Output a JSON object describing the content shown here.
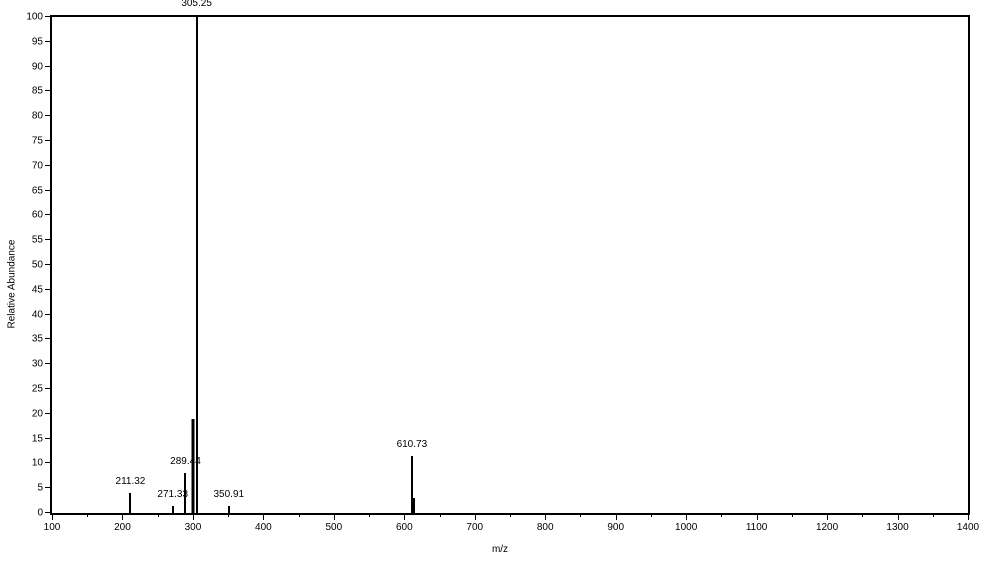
{
  "chart": {
    "type": "mass_spectrum",
    "background_color": "#ffffff",
    "border_color": "#000000",
    "text_color": "#000000",
    "peak_color": "#000000",
    "font_size_labels": 10,
    "font_size_axis": 10,
    "x_axis": {
      "title": "m/z",
      "min": 100,
      "max": 1400,
      "tick_step": 100,
      "minor_tick_step": 50
    },
    "y_axis": {
      "title": "Relative Abundance",
      "min": 0,
      "max": 100,
      "tick_step": 5
    },
    "peaks": [
      {
        "mz": 211.32,
        "abundance": 4,
        "label": "211.32",
        "label_y_offset": -2
      },
      {
        "mz": 271.33,
        "abundance": 1.5,
        "label": "271.33",
        "label_y_offset": -2
      },
      {
        "mz": 289.44,
        "abundance": 8,
        "label": "289.44",
        "label_y_offset": -2
      },
      {
        "mz": 300.0,
        "abundance": 19,
        "width": 3
      },
      {
        "mz": 305.25,
        "abundance": 100,
        "label": "305.25",
        "label_y_offset": -4
      },
      {
        "mz": 350.91,
        "abundance": 1.5,
        "label": "350.91",
        "label_y_offset": -2
      },
      {
        "mz": 610.73,
        "abundance": 11.5,
        "label": "610.73",
        "label_y_offset": -2
      },
      {
        "mz": 614.0,
        "abundance": 3,
        "width": 2
      }
    ]
  }
}
